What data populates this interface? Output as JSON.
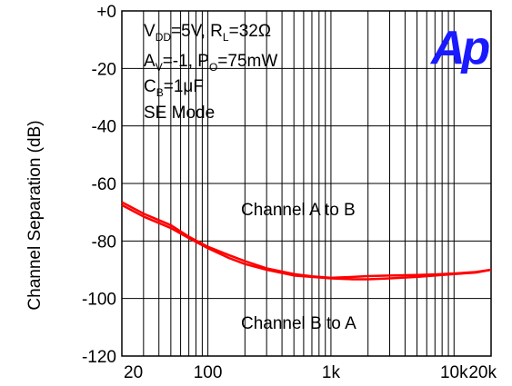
{
  "chart_data": {
    "type": "line",
    "x_scale": "log",
    "xlim": [
      20,
      20000
    ],
    "ylim": [
      -120,
      0
    ],
    "ylabel": "Channel Separation  (dB)",
    "xlabel": "",
    "x_ticks": [
      {
        "value": 20,
        "label": "20"
      },
      {
        "value": 100,
        "label": "100"
      },
      {
        "value": 1000,
        "label": "1k"
      },
      {
        "value": 10000,
        "label": "10k"
      },
      {
        "value": 20000,
        "label": "20k"
      }
    ],
    "y_ticks": [
      {
        "value": 0,
        "label": "+0"
      },
      {
        "value": -20,
        "label": "-20"
      },
      {
        "value": -40,
        "label": "-40"
      },
      {
        "value": -60,
        "label": "-60"
      },
      {
        "value": -80,
        "label": "-80"
      },
      {
        "value": -100,
        "label": "-100"
      },
      {
        "value": -120,
        "label": "-120"
      }
    ],
    "grid": true,
    "conditions": {
      "line1": {
        "a": "V",
        "a_sub": "DD",
        "b": "=5V, R",
        "b_sub": "L",
        "c": "=32Ω"
      },
      "line2": {
        "a": "A",
        "a_sub": "V",
        "b": "=-1, P",
        "b_sub": "O",
        "c": "=75mW"
      },
      "line3": {
        "a": "C",
        "a_sub": "B",
        "b": "=1μF"
      },
      "line4": "SE Mode"
    },
    "logo_text": "Ap",
    "annotations": {
      "upper": "Channel A to B",
      "lower": "Channel B to A"
    },
    "series": [
      {
        "color": "#ff0000",
        "x": [
          20,
          30,
          50,
          70,
          100,
          150,
          200,
          300,
          500,
          700,
          1000,
          1500,
          2000,
          3000,
          5000,
          7000,
          10000,
          15000,
          20000
        ],
        "y": [
          -67.5,
          -71.5,
          -75.5,
          -79,
          -82.5,
          -86,
          -88,
          -90,
          -92,
          -92.5,
          -93,
          -93.3,
          -93.3,
          -93,
          -92.5,
          -92,
          -91.5,
          -91,
          -90
        ]
      },
      {
        "color": "#ff0000",
        "x": [
          20,
          30,
          50,
          70,
          100,
          150,
          200,
          300,
          500,
          700,
          1000,
          1500,
          2000,
          3000,
          5000,
          7000,
          10000,
          15000,
          20000
        ],
        "y": [
          -66.5,
          -70.5,
          -74.5,
          -78.5,
          -82,
          -85,
          -87,
          -89.5,
          -91.5,
          -92.3,
          -92.8,
          -92.5,
          -92.2,
          -92,
          -91.8,
          -91.6,
          -91.3,
          -90.8,
          -90
        ]
      }
    ]
  }
}
